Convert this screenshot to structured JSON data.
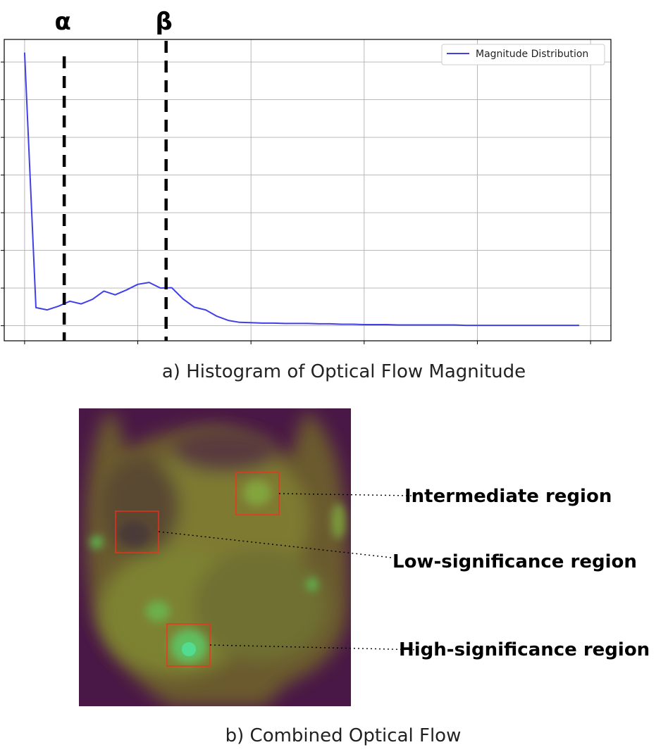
{
  "figure": {
    "panel_a": {
      "caption": "a) Histogram of Optical Flow Magnitude",
      "threshold_labels": {
        "alpha": "α",
        "beta": "β"
      }
    },
    "panel_b": {
      "caption": "b) Combined Optical Flow",
      "regions": [
        {
          "label": "Intermediate region"
        },
        {
          "label": "Low-significance region"
        },
        {
          "label": "High-significance region"
        }
      ]
    }
  },
  "chart_data": {
    "type": "line",
    "legend": "top-right",
    "grid": true,
    "series": [
      {
        "name": "Magnitude Distribution",
        "color": "#4040e8",
        "x": [
          0,
          1,
          2,
          3,
          4,
          5,
          6,
          7,
          8,
          9,
          10,
          11,
          12,
          13,
          14,
          15,
          16,
          17,
          18,
          19,
          20,
          21,
          22,
          23,
          24,
          25,
          26,
          27,
          28,
          29,
          30,
          31,
          32,
          33,
          34,
          35,
          36,
          37,
          38,
          39,
          40,
          41,
          42,
          43,
          44,
          45,
          46,
          47,
          48,
          49
        ],
        "values": [
          0.725,
          0.048,
          0.042,
          0.052,
          0.065,
          0.058,
          0.07,
          0.092,
          0.082,
          0.095,
          0.11,
          0.115,
          0.1,
          0.101,
          0.071,
          0.049,
          0.042,
          0.025,
          0.014,
          0.009,
          0.008,
          0.007,
          0.007,
          0.006,
          0.006,
          0.006,
          0.005,
          0.005,
          0.004,
          0.004,
          0.003,
          0.003,
          0.003,
          0.002,
          0.002,
          0.002,
          0.002,
          0.002,
          0.002,
          0.001,
          0.001,
          0.001,
          0.001,
          0.001,
          0.001,
          0.001,
          0.001,
          0.001,
          0.001,
          0.001
        ]
      }
    ],
    "thresholds": {
      "alpha": 3.5,
      "beta": 12.5
    },
    "xlim": [
      -1.8,
      51.8
    ],
    "ylim": [
      -0.04,
      0.76
    ],
    "xticks": [
      0,
      10,
      20,
      30,
      40,
      50
    ],
    "yticks": [
      0,
      0.1,
      0.2,
      0.3,
      0.4,
      0.5,
      0.6,
      0.7
    ]
  }
}
